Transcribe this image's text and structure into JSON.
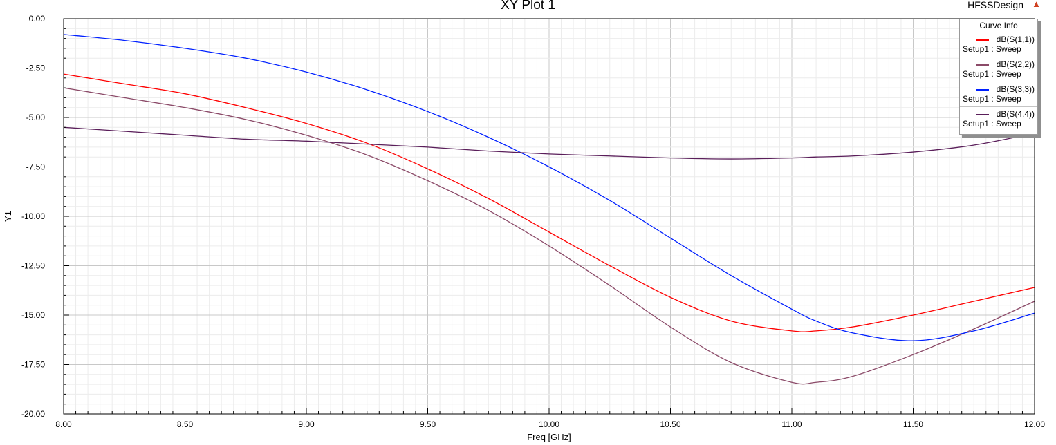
{
  "header": {
    "title": "XY Plot 1",
    "design_name": "HFSSDesign"
  },
  "legend": {
    "heading": "Curve Info",
    "items": [
      {
        "name": "dB(S(1,1))",
        "setup": "Setup1 : Sweep",
        "color": "#ff0000"
      },
      {
        "name": "dB(S(2,2))",
        "setup": "Setup1 : Sweep",
        "color": "#8b4a68"
      },
      {
        "name": "dB(S(3,3))",
        "setup": "Setup1 : Sweep",
        "color": "#0020ff"
      },
      {
        "name": "dB(S(4,4))",
        "setup": "Setup1 : Sweep",
        "color": "#5a1e5a"
      }
    ]
  },
  "chart_data": {
    "type": "line",
    "title": "XY Plot 1",
    "xlabel": "Freq [GHz]",
    "ylabel": "Y1",
    "xlim": [
      8.0,
      12.0
    ],
    "ylim": [
      -20.0,
      0.0
    ],
    "grid": true,
    "legend_position": "top-right",
    "x_ticks": [
      "8.00",
      "8.50",
      "9.00",
      "9.50",
      "10.00",
      "10.50",
      "11.00",
      "11.50",
      "12.00"
    ],
    "y_ticks": [
      "0.00",
      "-2.50",
      "-5.00",
      "-7.50",
      "-10.00",
      "-12.50",
      "-15.00",
      "-17.50",
      "-20.00"
    ],
    "x": [
      8.0,
      8.25,
      8.5,
      8.75,
      9.0,
      9.25,
      9.5,
      9.75,
      10.0,
      10.25,
      10.5,
      10.75,
      11.0,
      11.1,
      11.25,
      11.5,
      11.75,
      12.0
    ],
    "series": [
      {
        "name": "dB(S(1,1))",
        "color": "#ff0000",
        "values": [
          -2.8,
          -3.3,
          -3.8,
          -4.5,
          -5.3,
          -6.3,
          -7.6,
          -9.1,
          -10.8,
          -12.5,
          -14.1,
          -15.3,
          -15.8,
          -15.8,
          -15.6,
          -15.0,
          -14.3,
          -13.6
        ]
      },
      {
        "name": "dB(S(2,2))",
        "color": "#8b4a68",
        "values": [
          -3.5,
          -4.0,
          -4.5,
          -5.1,
          -5.9,
          -6.9,
          -8.2,
          -9.7,
          -11.5,
          -13.5,
          -15.6,
          -17.4,
          -18.4,
          -18.4,
          -18.1,
          -17.0,
          -15.7,
          -14.3
        ]
      },
      {
        "name": "dB(S(3,3))",
        "color": "#0020ff",
        "values": [
          -0.8,
          -1.1,
          -1.5,
          -2.0,
          -2.7,
          -3.6,
          -4.7,
          -6.0,
          -7.5,
          -9.2,
          -11.1,
          -13.0,
          -14.7,
          -15.3,
          -15.9,
          -16.3,
          -15.8,
          -14.9
        ]
      },
      {
        "name": "dB(S(4,4))",
        "color": "#5a1e5a",
        "values": [
          -5.5,
          -5.7,
          -5.9,
          -6.1,
          -6.2,
          -6.35,
          -6.5,
          -6.7,
          -6.85,
          -6.95,
          -7.05,
          -7.1,
          -7.05,
          -7.0,
          -6.95,
          -6.75,
          -6.4,
          -5.8
        ]
      }
    ]
  }
}
